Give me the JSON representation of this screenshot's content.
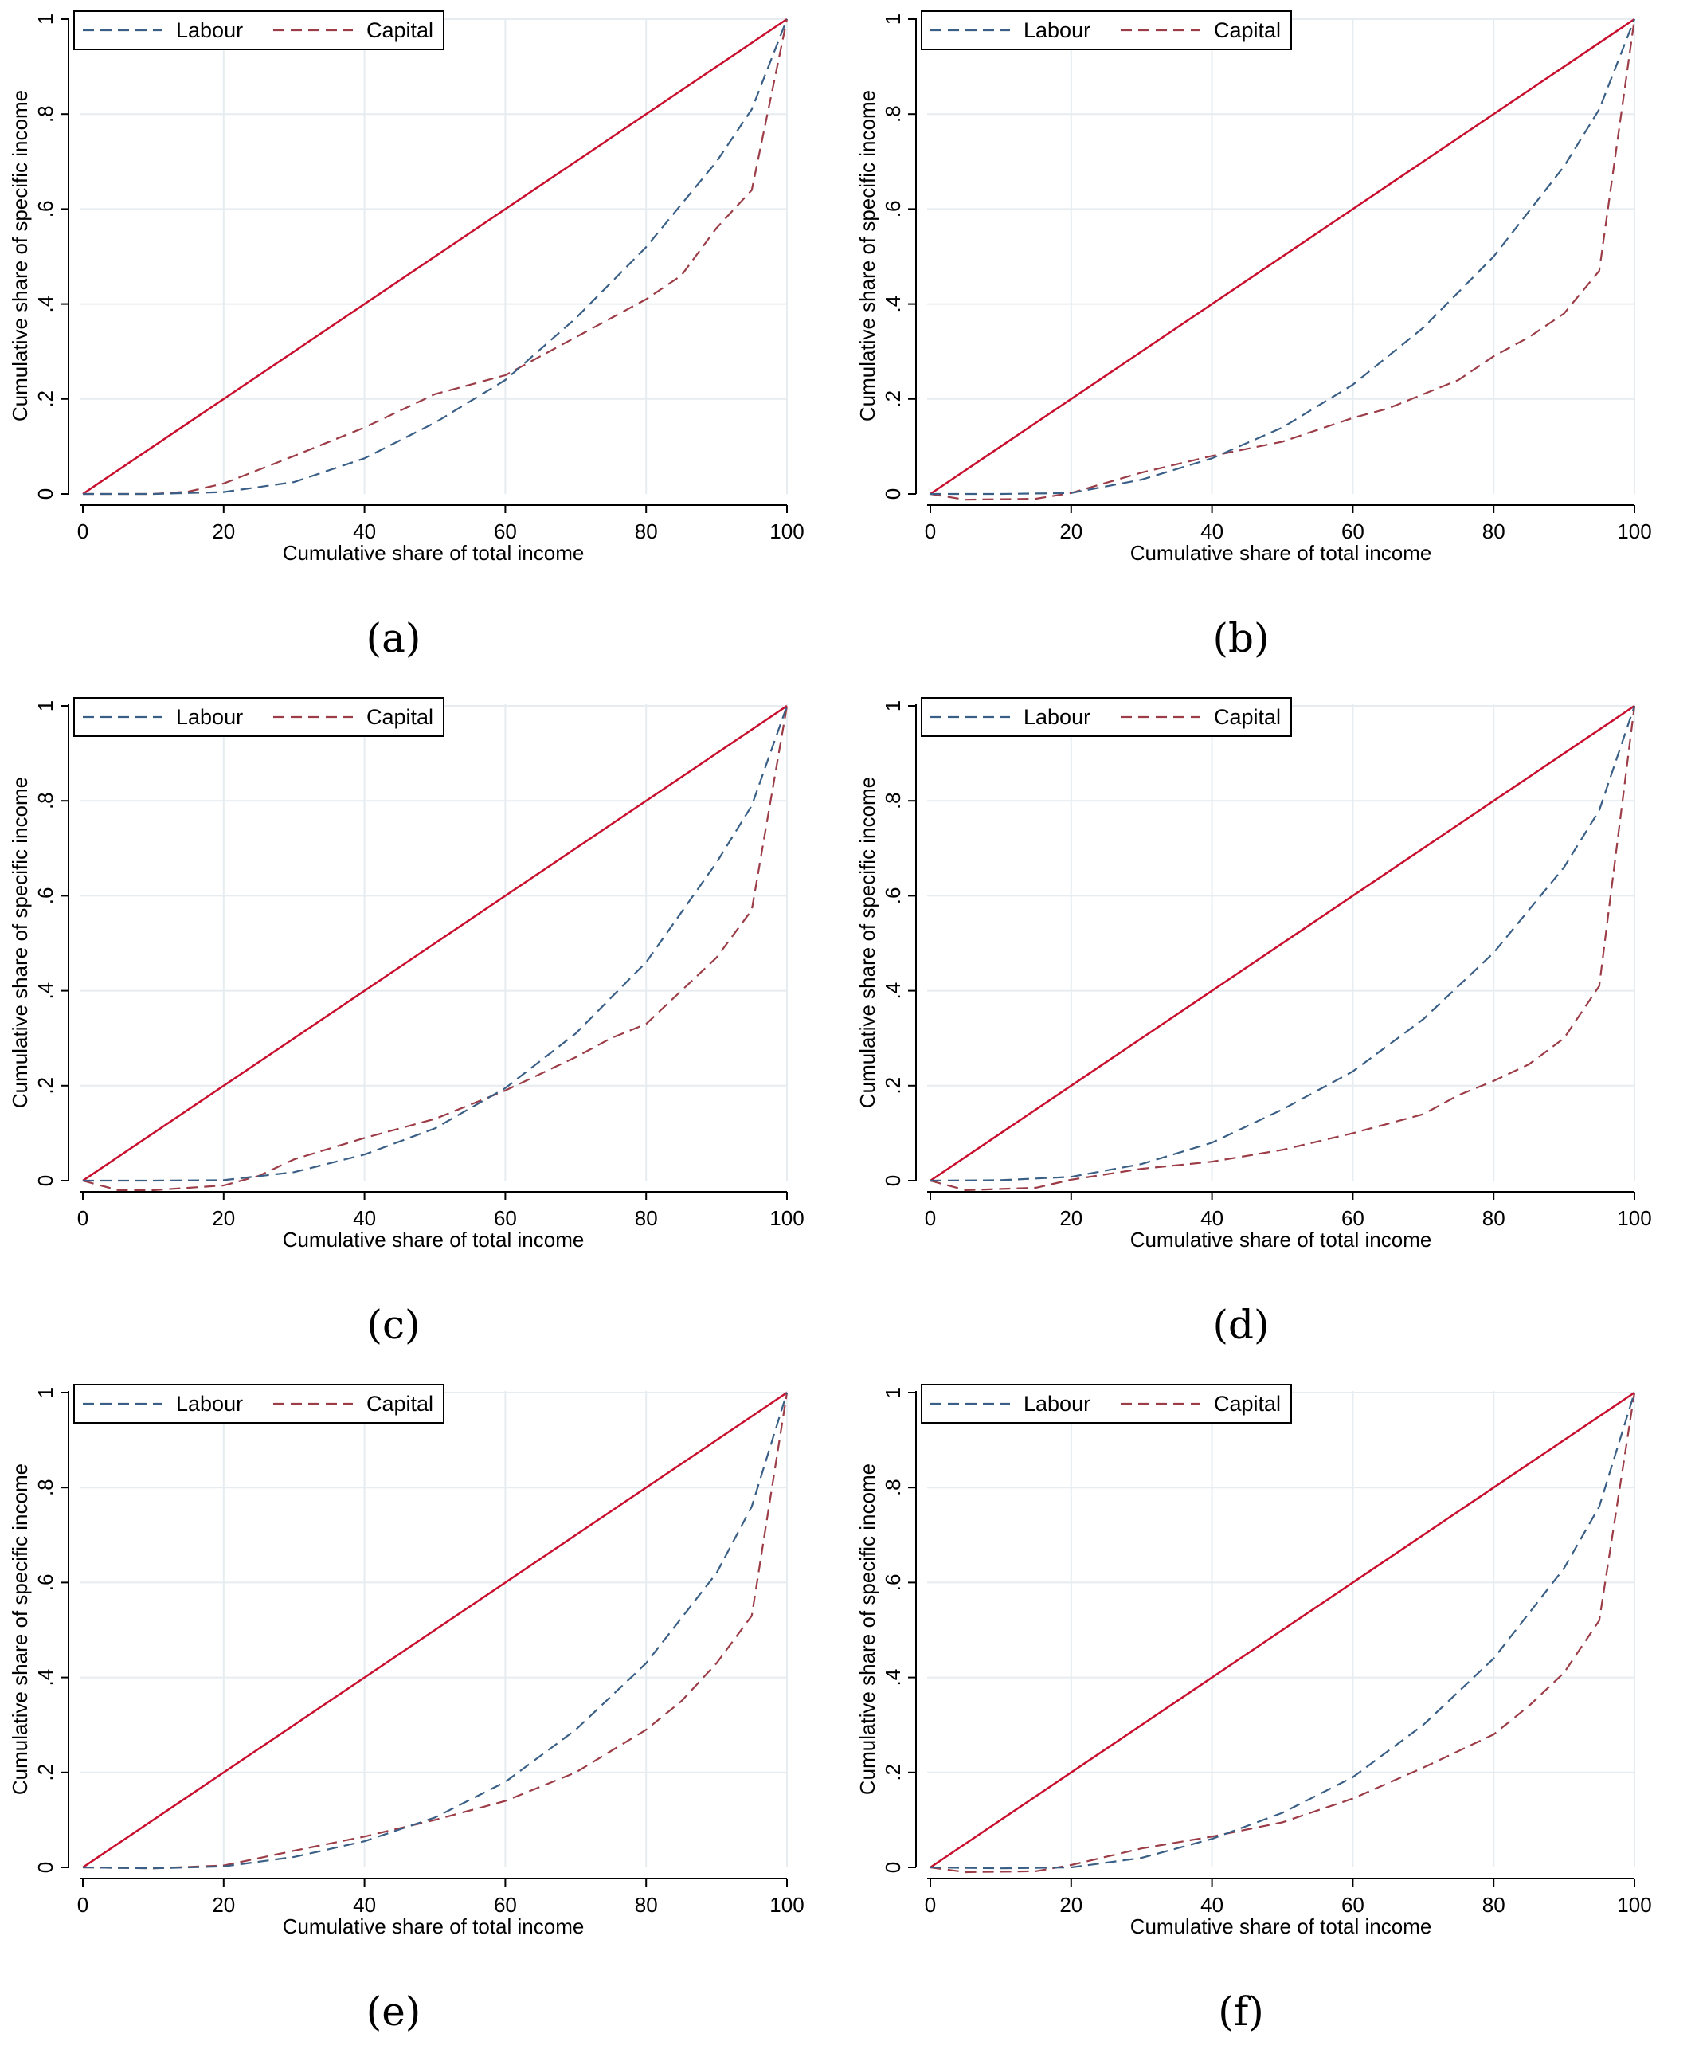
{
  "chart_data": [
    {
      "panel": "(a)",
      "type": "line",
      "xlabel": "Cumulative share of total income",
      "ylabel": "Cumulative share of specific income",
      "xlim": [
        0,
        100
      ],
      "ylim": [
        0,
        1
      ],
      "xticks": [
        {
          "v": 0,
          "label": "0"
        },
        {
          "v": 20,
          "label": "20"
        },
        {
          "v": 40,
          "label": "40"
        },
        {
          "v": 60,
          "label": "60"
        },
        {
          "v": 80,
          "label": "80"
        },
        {
          "v": 100,
          "label": "100"
        }
      ],
      "yticks": [
        {
          "v": 0,
          "label": "0"
        },
        {
          "v": 0.2,
          "label": ".2"
        },
        {
          "v": 0.4,
          "label": ".4"
        },
        {
          "v": 0.6,
          "label": ".6"
        },
        {
          "v": 0.8,
          "label": ".8"
        },
        {
          "v": 1,
          "label": "1"
        }
      ],
      "grid": true,
      "legend": {
        "position": "top-left",
        "entries": [
          "Labour",
          "Capital"
        ]
      },
      "series": [
        {
          "name": "Labour",
          "style": "dashed",
          "color": "#3a5f86",
          "x": [
            0,
            10,
            20,
            30,
            40,
            50,
            60,
            70,
            80,
            90,
            95,
            100
          ],
          "y": [
            0,
            0,
            0.004,
            0.025,
            0.075,
            0.15,
            0.24,
            0.37,
            0.52,
            0.7,
            0.81,
            1.0
          ]
        },
        {
          "name": "Capital",
          "style": "dashed",
          "color": "#9c3c47",
          "x": [
            0,
            10,
            15,
            20,
            30,
            40,
            50,
            60,
            70,
            80,
            85,
            90,
            95,
            100
          ],
          "y": [
            0,
            0,
            0.005,
            0.022,
            0.08,
            0.14,
            0.21,
            0.25,
            0.33,
            0.41,
            0.46,
            0.56,
            0.64,
            1.0
          ]
        },
        {
          "name": "",
          "style": "solid",
          "color": "#c8102e",
          "x": [
            0,
            100
          ],
          "y": [
            0,
            1
          ]
        }
      ]
    },
    {
      "panel": "(b)",
      "type": "line",
      "xlabel": "Cumulative share of total income",
      "ylabel": "Cumulative share of specific income",
      "xlim": [
        0,
        100
      ],
      "ylim": [
        0,
        1
      ],
      "xticks": [
        {
          "v": 0,
          "label": "0"
        },
        {
          "v": 20,
          "label": "20"
        },
        {
          "v": 40,
          "label": "40"
        },
        {
          "v": 60,
          "label": "60"
        },
        {
          "v": 80,
          "label": "80"
        },
        {
          "v": 100,
          "label": "100"
        }
      ],
      "yticks": [
        {
          "v": 0,
          "label": "0"
        },
        {
          "v": 0.2,
          "label": ".2"
        },
        {
          "v": 0.4,
          "label": ".4"
        },
        {
          "v": 0.6,
          "label": ".6"
        },
        {
          "v": 0.8,
          "label": ".8"
        },
        {
          "v": 1,
          "label": "1"
        }
      ],
      "grid": true,
      "legend": {
        "position": "top-left",
        "entries": [
          "Labour",
          "Capital"
        ]
      },
      "series": [
        {
          "name": "Labour",
          "style": "dashed",
          "color": "#3a5f86",
          "x": [
            0,
            10,
            20,
            30,
            40,
            50,
            60,
            70,
            80,
            90,
            95,
            100
          ],
          "y": [
            0,
            0,
            0.002,
            0.03,
            0.075,
            0.14,
            0.23,
            0.35,
            0.5,
            0.69,
            0.81,
            1.0
          ]
        },
        {
          "name": "Capital",
          "style": "dashed",
          "color": "#9c3c47",
          "x": [
            0,
            5,
            15,
            20,
            30,
            40,
            50,
            60,
            65,
            75,
            80,
            85,
            90,
            95,
            100
          ],
          "y": [
            0,
            -0.012,
            -0.01,
            0.002,
            0.045,
            0.08,
            0.11,
            0.16,
            0.18,
            0.24,
            0.29,
            0.33,
            0.38,
            0.47,
            1.0
          ]
        },
        {
          "name": "",
          "style": "solid",
          "color": "#c8102e",
          "x": [
            0,
            100
          ],
          "y": [
            0,
            1
          ]
        }
      ]
    },
    {
      "panel": "(c)",
      "type": "line",
      "xlabel": "Cumulative share of total income",
      "ylabel": "Cumulative share of specific income",
      "xlim": [
        0,
        100
      ],
      "ylim": [
        0,
        1
      ],
      "xticks": [
        {
          "v": 0,
          "label": "0"
        },
        {
          "v": 20,
          "label": "20"
        },
        {
          "v": 40,
          "label": "40"
        },
        {
          "v": 60,
          "label": "60"
        },
        {
          "v": 80,
          "label": "80"
        },
        {
          "v": 100,
          "label": "100"
        }
      ],
      "yticks": [
        {
          "v": 0,
          "label": "0"
        },
        {
          "v": 0.2,
          "label": ".2"
        },
        {
          "v": 0.4,
          "label": ".4"
        },
        {
          "v": 0.6,
          "label": ".6"
        },
        {
          "v": 0.8,
          "label": ".8"
        },
        {
          "v": 1,
          "label": "1"
        }
      ],
      "grid": true,
      "legend": {
        "position": "top-left",
        "entries": [
          "Labour",
          "Capital"
        ]
      },
      "series": [
        {
          "name": "Labour",
          "style": "dashed",
          "color": "#3a5f86",
          "x": [
            0,
            10,
            20,
            30,
            40,
            50,
            60,
            70,
            80,
            90,
            95,
            100
          ],
          "y": [
            0,
            0,
            0.001,
            0.018,
            0.055,
            0.11,
            0.195,
            0.31,
            0.46,
            0.67,
            0.79,
            1.0
          ]
        },
        {
          "name": "Capital",
          "style": "dashed",
          "color": "#9c3c47",
          "x": [
            0,
            5,
            10,
            20,
            25,
            30,
            40,
            50,
            60,
            70,
            75,
            80,
            90,
            95,
            100
          ],
          "y": [
            0,
            -0.02,
            -0.02,
            -0.01,
            0.01,
            0.045,
            0.09,
            0.13,
            0.19,
            0.26,
            0.3,
            0.33,
            0.47,
            0.57,
            1.0
          ]
        },
        {
          "name": "",
          "style": "solid",
          "color": "#c8102e",
          "x": [
            0,
            100
          ],
          "y": [
            0,
            1
          ]
        }
      ]
    },
    {
      "panel": "(d)",
      "type": "line",
      "xlabel": "Cumulative share of total income",
      "ylabel": "Cumulative share of specific income",
      "xlim": [
        0,
        100
      ],
      "ylim": [
        0,
        1
      ],
      "xticks": [
        {
          "v": 0,
          "label": "0"
        },
        {
          "v": 20,
          "label": "20"
        },
        {
          "v": 40,
          "label": "40"
        },
        {
          "v": 60,
          "label": "60"
        },
        {
          "v": 80,
          "label": "80"
        },
        {
          "v": 100,
          "label": "100"
        }
      ],
      "yticks": [
        {
          "v": 0,
          "label": "0"
        },
        {
          "v": 0.2,
          "label": ".2"
        },
        {
          "v": 0.4,
          "label": ".4"
        },
        {
          "v": 0.6,
          "label": ".6"
        },
        {
          "v": 0.8,
          "label": ".8"
        },
        {
          "v": 1,
          "label": "1"
        }
      ],
      "grid": true,
      "legend": {
        "position": "top-left",
        "entries": [
          "Labour",
          "Capital"
        ]
      },
      "series": [
        {
          "name": "Labour",
          "style": "dashed",
          "color": "#3a5f86",
          "x": [
            0,
            10,
            20,
            30,
            40,
            50,
            60,
            70,
            80,
            90,
            95,
            100
          ],
          "y": [
            0,
            0.001,
            0.008,
            0.035,
            0.08,
            0.15,
            0.23,
            0.34,
            0.48,
            0.66,
            0.78,
            1.0
          ]
        },
        {
          "name": "Capital",
          "style": "dashed",
          "color": "#9c3c47",
          "x": [
            0,
            5,
            15,
            20,
            30,
            40,
            50,
            60,
            70,
            75,
            80,
            85,
            90,
            95,
            100
          ],
          "y": [
            0,
            -0.02,
            -0.015,
            0.002,
            0.025,
            0.04,
            0.065,
            0.1,
            0.14,
            0.18,
            0.21,
            0.245,
            0.3,
            0.41,
            1.0
          ]
        },
        {
          "name": "",
          "style": "solid",
          "color": "#c8102e",
          "x": [
            0,
            100
          ],
          "y": [
            0,
            1
          ]
        }
      ]
    },
    {
      "panel": "(e)",
      "type": "line",
      "xlabel": "Cumulative share of total income",
      "ylabel": "Cumulative share of specific income",
      "xlim": [
        0,
        100
      ],
      "ylim": [
        0,
        1
      ],
      "xticks": [
        {
          "v": 0,
          "label": "0"
        },
        {
          "v": 20,
          "label": "20"
        },
        {
          "v": 40,
          "label": "40"
        },
        {
          "v": 60,
          "label": "60"
        },
        {
          "v": 80,
          "label": "80"
        },
        {
          "v": 100,
          "label": "100"
        }
      ],
      "yticks": [
        {
          "v": 0,
          "label": "0"
        },
        {
          "v": 0.2,
          "label": ".2"
        },
        {
          "v": 0.4,
          "label": ".4"
        },
        {
          "v": 0.6,
          "label": ".6"
        },
        {
          "v": 0.8,
          "label": ".8"
        },
        {
          "v": 1,
          "label": "1"
        }
      ],
      "grid": true,
      "legend": {
        "position": "top-left",
        "entries": [
          "Labour",
          "Capital"
        ]
      },
      "series": [
        {
          "name": "Labour",
          "style": "dashed",
          "color": "#3a5f86",
          "x": [
            0,
            10,
            20,
            30,
            40,
            50,
            60,
            70,
            80,
            90,
            95,
            100
          ],
          "y": [
            0,
            -0.002,
            0.002,
            0.022,
            0.055,
            0.105,
            0.18,
            0.29,
            0.43,
            0.62,
            0.76,
            1.0
          ]
        },
        {
          "name": "Capital",
          "style": "dashed",
          "color": "#9c3c47",
          "x": [
            0,
            10,
            20,
            30,
            40,
            50,
            60,
            70,
            80,
            85,
            90,
            95,
            100
          ],
          "y": [
            0,
            -0.002,
            0.004,
            0.035,
            0.065,
            0.1,
            0.14,
            0.2,
            0.29,
            0.35,
            0.43,
            0.53,
            1.0
          ]
        },
        {
          "name": "",
          "style": "solid",
          "color": "#c8102e",
          "x": [
            0,
            100
          ],
          "y": [
            0,
            1
          ]
        }
      ]
    },
    {
      "panel": "(f)",
      "type": "line",
      "xlabel": "Cumulative share of total income",
      "ylabel": "Cumulative share of specific income",
      "xlim": [
        0,
        100
      ],
      "ylim": [
        0,
        1
      ],
      "xticks": [
        {
          "v": 0,
          "label": "0"
        },
        {
          "v": 20,
          "label": "20"
        },
        {
          "v": 40,
          "label": "40"
        },
        {
          "v": 60,
          "label": "60"
        },
        {
          "v": 80,
          "label": "80"
        },
        {
          "v": 100,
          "label": "100"
        }
      ],
      "yticks": [
        {
          "v": 0,
          "label": "0"
        },
        {
          "v": 0.2,
          "label": ".2"
        },
        {
          "v": 0.4,
          "label": ".4"
        },
        {
          "v": 0.6,
          "label": ".6"
        },
        {
          "v": 0.8,
          "label": ".8"
        },
        {
          "v": 1,
          "label": "1"
        }
      ],
      "grid": true,
      "legend": {
        "position": "top-left",
        "entries": [
          "Labour",
          "Capital"
        ]
      },
      "series": [
        {
          "name": "Labour",
          "style": "dashed",
          "color": "#3a5f86",
          "x": [
            0,
            10,
            20,
            30,
            40,
            50,
            60,
            70,
            80,
            90,
            95,
            100
          ],
          "y": [
            0,
            -0.002,
            0,
            0.02,
            0.06,
            0.115,
            0.19,
            0.3,
            0.44,
            0.63,
            0.76,
            1.0
          ]
        },
        {
          "name": "Capital",
          "style": "dashed",
          "color": "#9c3c47",
          "x": [
            0,
            5,
            15,
            20,
            30,
            40,
            50,
            60,
            70,
            80,
            85,
            90,
            95,
            100
          ],
          "y": [
            0,
            -0.01,
            -0.008,
            0.005,
            0.04,
            0.065,
            0.095,
            0.145,
            0.21,
            0.28,
            0.34,
            0.41,
            0.52,
            1.0
          ]
        },
        {
          "name": "",
          "style": "solid",
          "color": "#c8102e",
          "x": [
            0,
            100
          ],
          "y": [
            0,
            1
          ]
        }
      ]
    }
  ]
}
